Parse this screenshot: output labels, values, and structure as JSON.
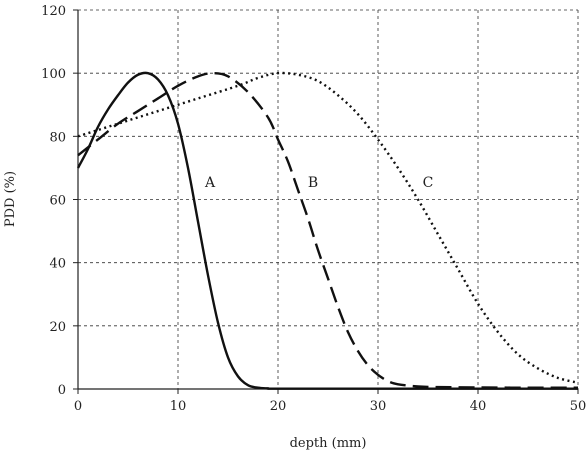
{
  "chart_data": {
    "type": "line",
    "title": "",
    "xlabel": "depth (mm)",
    "ylabel": "PDD (%)",
    "xlim": [
      0,
      50
    ],
    "ylim": [
      0,
      120
    ],
    "xticks": [
      0,
      10,
      20,
      30,
      40,
      50
    ],
    "yticks": [
      0,
      20,
      40,
      60,
      80,
      100,
      120
    ],
    "grid": true,
    "x_tick_labels": [
      "0",
      "10",
      "20",
      "30",
      "40",
      "50"
    ],
    "y_tick_labels": [
      "0",
      "20",
      "40",
      "60",
      "80",
      "100",
      "120"
    ],
    "series": [
      {
        "name": "A",
        "style": "solid",
        "label_pos": [
          13.2,
          64
        ],
        "points": [
          [
            0,
            70
          ],
          [
            1,
            76
          ],
          [
            2,
            83
          ],
          [
            3,
            88.5
          ],
          [
            4,
            93
          ],
          [
            5,
            97
          ],
          [
            6,
            99.5
          ],
          [
            7,
            100
          ],
          [
            8,
            98
          ],
          [
            9,
            93
          ],
          [
            10,
            84
          ],
          [
            11,
            70
          ],
          [
            12,
            53
          ],
          [
            13,
            36
          ],
          [
            14,
            21
          ],
          [
            15,
            10
          ],
          [
            16,
            4
          ],
          [
            17,
            1.2
          ],
          [
            18,
            0.4
          ],
          [
            19,
            0.2
          ],
          [
            20,
            0.1
          ],
          [
            30,
            0.1
          ],
          [
            40,
            0.1
          ],
          [
            50,
            0.1
          ]
        ]
      },
      {
        "name": "B",
        "style": "dashed",
        "label_pos": [
          23.5,
          64
        ],
        "points": [
          [
            0,
            74
          ],
          [
            2,
            79
          ],
          [
            4,
            84
          ],
          [
            6,
            88
          ],
          [
            8,
            92
          ],
          [
            10,
            96
          ],
          [
            12,
            99
          ],
          [
            13.5,
            100
          ],
          [
            15,
            99
          ],
          [
            17,
            94
          ],
          [
            19,
            86
          ],
          [
            20,
            79
          ],
          [
            21,
            72
          ],
          [
            22,
            63
          ],
          [
            23,
            54
          ],
          [
            24,
            44
          ],
          [
            25,
            35
          ],
          [
            26,
            26
          ],
          [
            27,
            18
          ],
          [
            28,
            12
          ],
          [
            29,
            7.5
          ],
          [
            30,
            4.5
          ],
          [
            31,
            2.5
          ],
          [
            32,
            1.5
          ],
          [
            34,
            0.8
          ],
          [
            36,
            0.6
          ],
          [
            40,
            0.5
          ],
          [
            45,
            0.4
          ],
          [
            50,
            0.4
          ]
        ]
      },
      {
        "name": "C",
        "style": "dotted",
        "label_pos": [
          35,
          64
        ],
        "points": [
          [
            0,
            80
          ],
          [
            4,
            84
          ],
          [
            8,
            88
          ],
          [
            12,
            92
          ],
          [
            16,
            96
          ],
          [
            18,
            98.5
          ],
          [
            20,
            100
          ],
          [
            22,
            99.5
          ],
          [
            24,
            97.5
          ],
          [
            26,
            93
          ],
          [
            28,
            87
          ],
          [
            30,
            79
          ],
          [
            32,
            70
          ],
          [
            34,
            60
          ],
          [
            36,
            49
          ],
          [
            38,
            38
          ],
          [
            40,
            27
          ],
          [
            42,
            18
          ],
          [
            44,
            11
          ],
          [
            46,
            6.5
          ],
          [
            48,
            3.5
          ],
          [
            50,
            2
          ]
        ]
      }
    ]
  }
}
